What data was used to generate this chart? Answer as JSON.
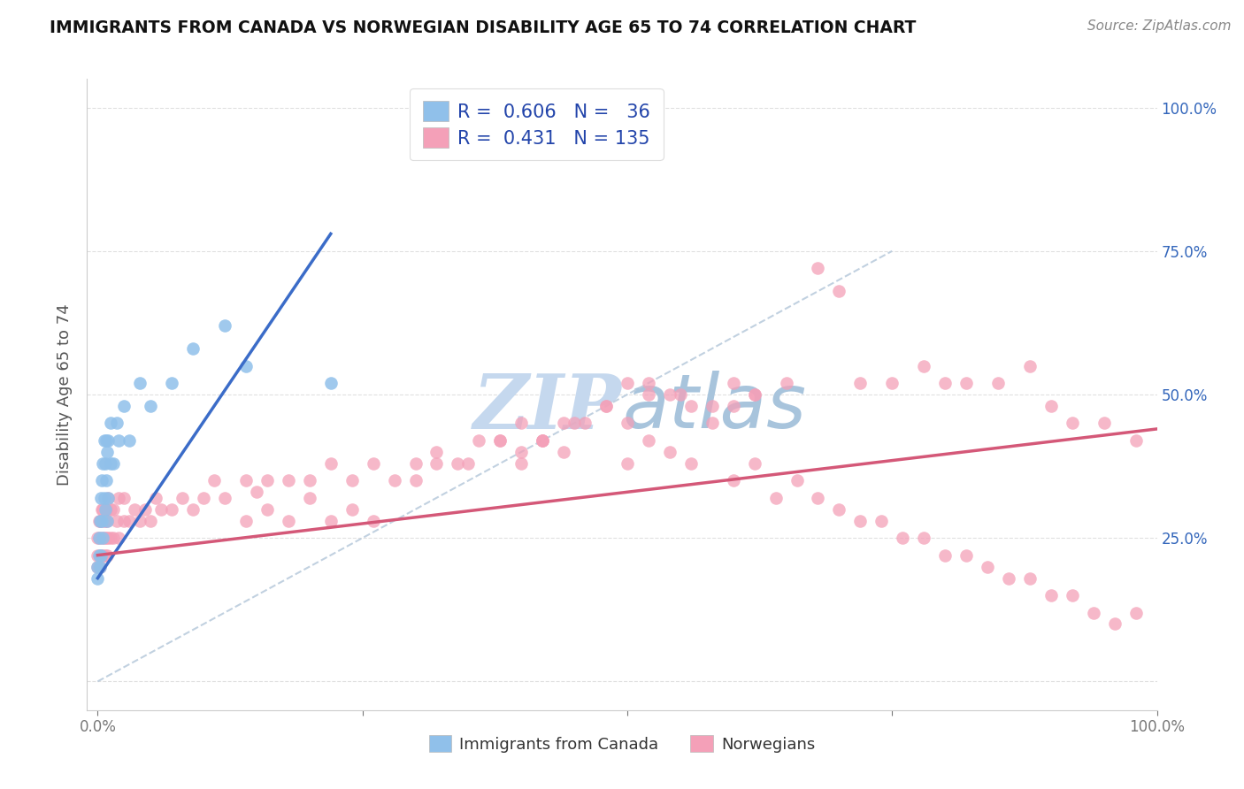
{
  "title": "IMMIGRANTS FROM CANADA VS NORWEGIAN DISABILITY AGE 65 TO 74 CORRELATION CHART",
  "source_text": "Source: ZipAtlas.com",
  "ylabel": "Disability Age 65 to 74",
  "xlabel": "",
  "xlim": [
    -0.01,
    1.0
  ],
  "ylim": [
    -0.05,
    1.05
  ],
  "canada_R": 0.606,
  "canada_N": 36,
  "norway_R": 0.431,
  "norway_N": 135,
  "canada_color": "#90C0EA",
  "norway_color": "#F4A0B8",
  "canada_line_color": "#3B6CC8",
  "norway_line_color": "#D45878",
  "diagonal_color": "#BBCCDD",
  "legend_text_color": "#2244AA",
  "background_color": "#FFFFFF",
  "grid_color": "#DDDDDD",
  "watermark_color": "#C5D8EE",
  "canada_x": [
    0.0,
    0.0,
    0.001,
    0.001,
    0.002,
    0.002,
    0.003,
    0.003,
    0.004,
    0.004,
    0.005,
    0.005,
    0.006,
    0.006,
    0.007,
    0.007,
    0.008,
    0.008,
    0.009,
    0.009,
    0.01,
    0.01,
    0.012,
    0.012,
    0.015,
    0.018,
    0.02,
    0.025,
    0.03,
    0.04,
    0.05,
    0.07,
    0.09,
    0.12,
    0.14,
    0.22
  ],
  "canada_y": [
    0.18,
    0.2,
    0.22,
    0.25,
    0.2,
    0.28,
    0.22,
    0.32,
    0.28,
    0.35,
    0.25,
    0.38,
    0.32,
    0.42,
    0.3,
    0.38,
    0.35,
    0.42,
    0.28,
    0.4,
    0.32,
    0.42,
    0.38,
    0.45,
    0.38,
    0.45,
    0.42,
    0.48,
    0.42,
    0.52,
    0.48,
    0.52,
    0.58,
    0.62,
    0.55,
    0.52
  ],
  "norway_x": [
    0.0,
    0.0,
    0.0,
    0.001,
    0.001,
    0.001,
    0.002,
    0.002,
    0.002,
    0.003,
    0.003,
    0.004,
    0.004,
    0.005,
    0.005,
    0.006,
    0.006,
    0.007,
    0.007,
    0.008,
    0.008,
    0.009,
    0.009,
    0.01,
    0.01,
    0.012,
    0.012,
    0.015,
    0.015,
    0.018,
    0.02,
    0.02,
    0.025,
    0.025,
    0.03,
    0.035,
    0.04,
    0.045,
    0.05,
    0.055,
    0.06,
    0.07,
    0.08,
    0.09,
    0.1,
    0.11,
    0.12,
    0.14,
    0.15,
    0.16,
    0.18,
    0.2,
    0.22,
    0.24,
    0.26,
    0.28,
    0.3,
    0.32,
    0.35,
    0.38,
    0.4,
    0.42,
    0.45,
    0.48,
    0.5,
    0.52,
    0.55,
    0.58,
    0.6,
    0.62,
    0.65,
    0.68,
    0.7,
    0.72,
    0.75,
    0.78,
    0.8,
    0.82,
    0.85,
    0.88,
    0.9,
    0.92,
    0.95,
    0.98,
    0.3,
    0.32,
    0.34,
    0.36,
    0.38,
    0.4,
    0.42,
    0.44,
    0.46,
    0.48,
    0.5,
    0.52,
    0.54,
    0.56,
    0.58,
    0.6,
    0.62,
    0.4,
    0.42,
    0.44,
    0.5,
    0.52,
    0.54,
    0.56,
    0.6,
    0.62,
    0.64,
    0.66,
    0.68,
    0.7,
    0.72,
    0.74,
    0.76,
    0.78,
    0.8,
    0.82,
    0.84,
    0.86,
    0.88,
    0.9,
    0.92,
    0.94,
    0.96,
    0.98,
    0.14,
    0.16,
    0.18,
    0.2,
    0.22,
    0.24,
    0.26
  ],
  "norway_y": [
    0.2,
    0.22,
    0.25,
    0.2,
    0.25,
    0.28,
    0.2,
    0.22,
    0.28,
    0.22,
    0.28,
    0.25,
    0.3,
    0.22,
    0.3,
    0.25,
    0.28,
    0.22,
    0.28,
    0.25,
    0.3,
    0.22,
    0.28,
    0.25,
    0.32,
    0.25,
    0.3,
    0.25,
    0.3,
    0.28,
    0.25,
    0.32,
    0.28,
    0.32,
    0.28,
    0.3,
    0.28,
    0.3,
    0.28,
    0.32,
    0.3,
    0.3,
    0.32,
    0.3,
    0.32,
    0.35,
    0.32,
    0.35,
    0.33,
    0.35,
    0.35,
    0.35,
    0.38,
    0.35,
    0.38,
    0.35,
    0.38,
    0.4,
    0.38,
    0.42,
    0.4,
    0.42,
    0.45,
    0.48,
    0.52,
    0.5,
    0.5,
    0.48,
    0.52,
    0.5,
    0.52,
    0.72,
    0.68,
    0.52,
    0.52,
    0.55,
    0.52,
    0.52,
    0.52,
    0.55,
    0.48,
    0.45,
    0.45,
    0.42,
    0.35,
    0.38,
    0.38,
    0.42,
    0.42,
    0.45,
    0.42,
    0.45,
    0.45,
    0.48,
    0.45,
    0.52,
    0.5,
    0.48,
    0.45,
    0.48,
    0.5,
    0.38,
    0.42,
    0.4,
    0.38,
    0.42,
    0.4,
    0.38,
    0.35,
    0.38,
    0.32,
    0.35,
    0.32,
    0.3,
    0.28,
    0.28,
    0.25,
    0.25,
    0.22,
    0.22,
    0.2,
    0.18,
    0.18,
    0.15,
    0.15,
    0.12,
    0.1,
    0.12,
    0.28,
    0.3,
    0.28,
    0.32,
    0.28,
    0.3,
    0.28
  ],
  "canada_line_x": [
    0.0,
    0.22
  ],
  "canada_line_y": [
    0.18,
    0.78
  ],
  "norway_line_x": [
    0.0,
    1.0
  ],
  "norway_line_y": [
    0.22,
    0.44
  ],
  "diag_line_x": [
    0.05,
    0.5
  ],
  "diag_line_y": [
    0.05,
    0.5
  ]
}
